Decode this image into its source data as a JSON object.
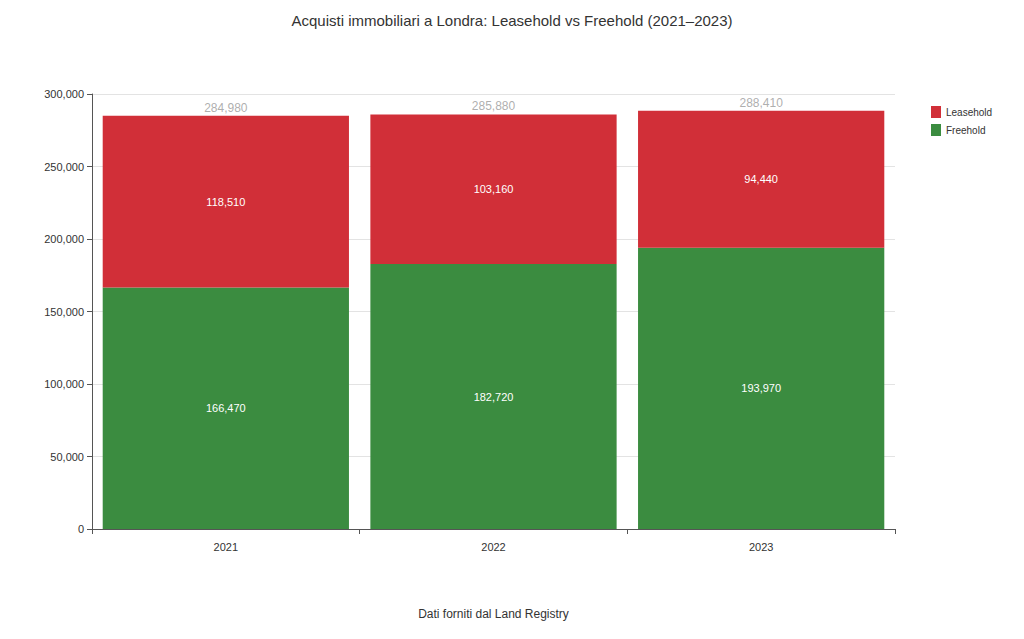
{
  "chart_data": {
    "type": "bar",
    "title": "Acquisti immobiliari a Londra: Leasehold vs Freehold (2021–2023)",
    "xlabel": "Dati forniti dal Land Registry",
    "categories": [
      "2021",
      "2022",
      "2023"
    ],
    "series": [
      {
        "name": "Freehold",
        "color": "#3b8c40",
        "values": [
          166470,
          182720,
          193970
        ],
        "value_labels": [
          "166,470",
          "182,720",
          "193,970"
        ]
      },
      {
        "name": "Leasehold",
        "color": "#d12f38",
        "values": [
          118510,
          103160,
          94440
        ],
        "value_labels": [
          "118,510",
          "103,160",
          "94,440"
        ]
      }
    ],
    "totals": [
      284980,
      285880,
      288410
    ],
    "total_labels": [
      "284,980",
      "285,880",
      "288,410"
    ],
    "ylim": [
      0,
      300000
    ],
    "yticks": [
      0,
      {
        "value": 50000,
        "label": "50,000"
      },
      {
        "value": 100000,
        "label": "100,000"
      },
      {
        "value": 150000,
        "label": "150,000"
      },
      {
        "value": 200000,
        "label": "200,000"
      },
      {
        "value": 250000,
        "label": "250,000"
      },
      {
        "value": 300000,
        "label": "300,000"
      }
    ],
    "stacked": true,
    "data_labels": true,
    "grid": true,
    "legend": "top-right"
  }
}
